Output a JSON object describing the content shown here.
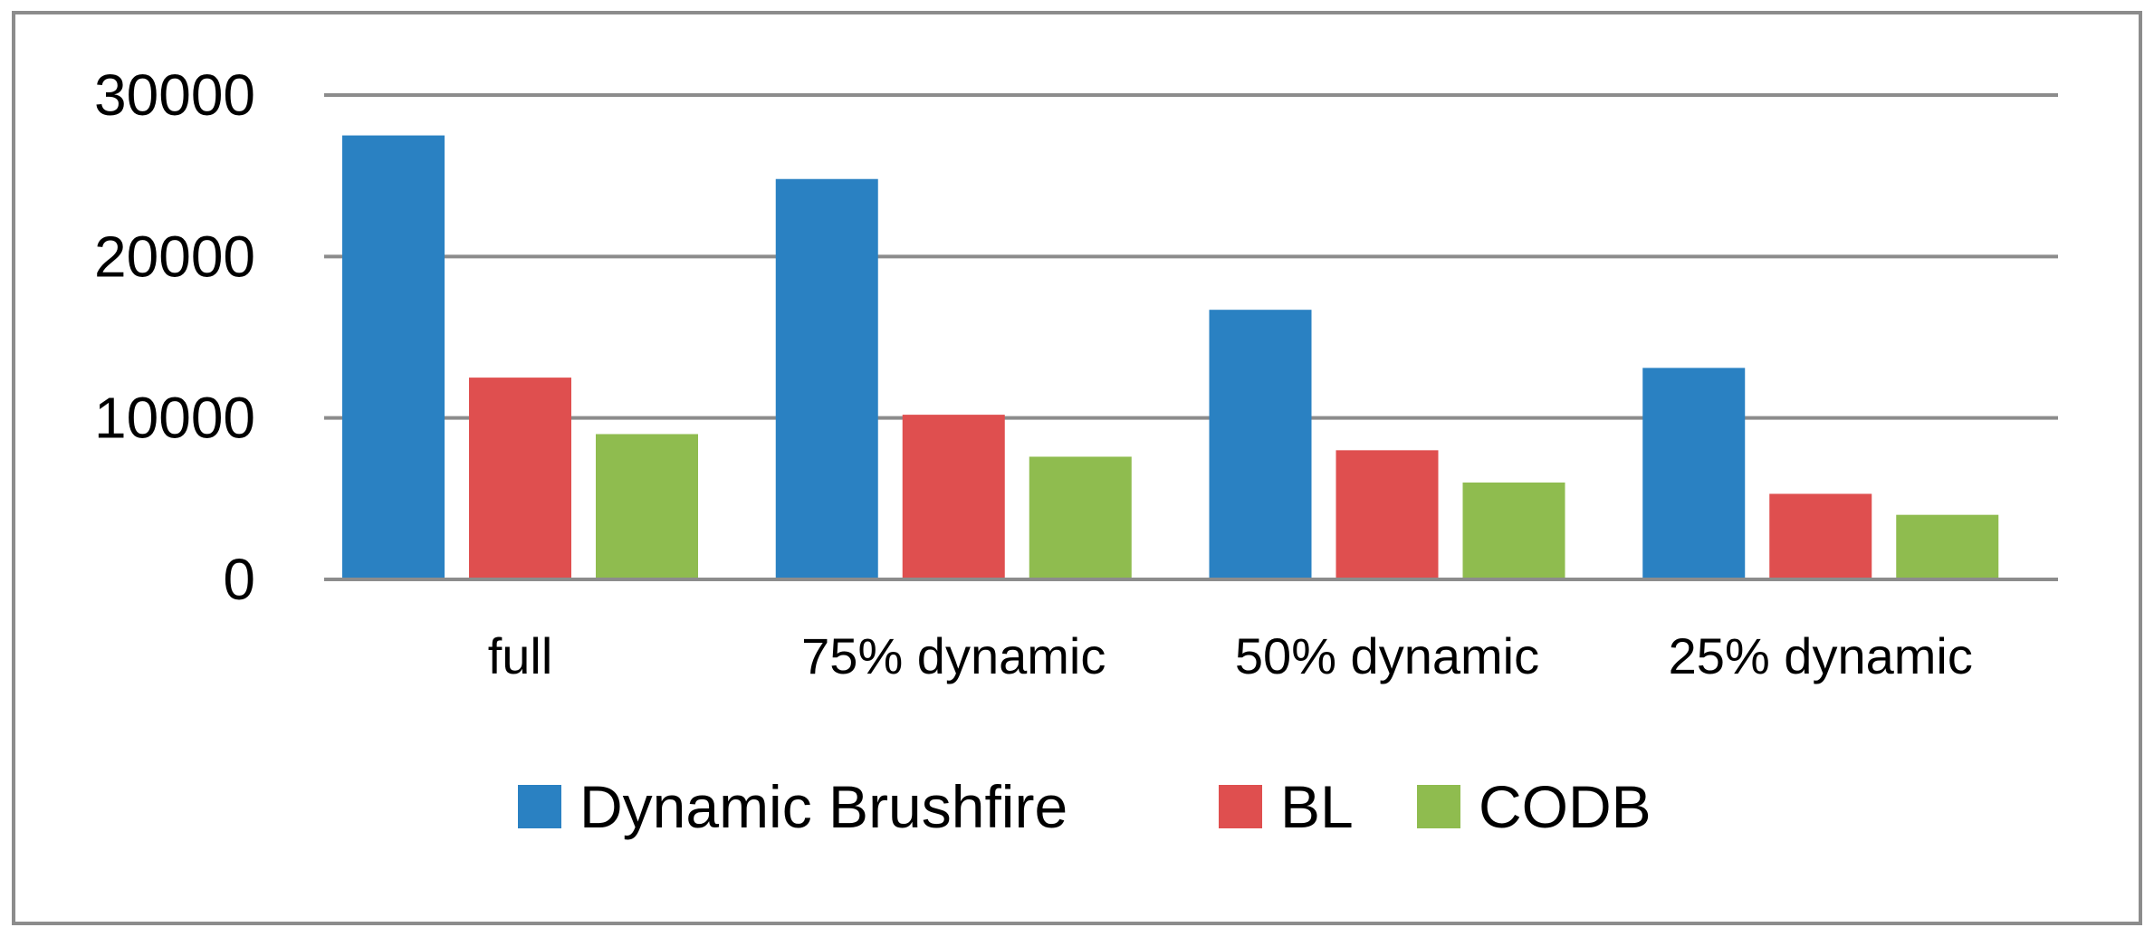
{
  "chart_data": {
    "type": "bar",
    "categories": [
      "full",
      "75% dynamic",
      "50% dynamic",
      "25% dynamic"
    ],
    "series": [
      {
        "name": "Dynamic Brushfire",
        "color": "#2a81c2",
        "values": [
          27500,
          24800,
          16700,
          13100
        ]
      },
      {
        "name": "BL",
        "color": "#df4f4f",
        "values": [
          12500,
          10200,
          8000,
          5300
        ]
      },
      {
        "name": "CODB",
        "color": "#8fbc4f",
        "values": [
          9000,
          7600,
          6000,
          4000
        ]
      }
    ],
    "ylim": [
      0,
      30000
    ],
    "yticks": [
      0,
      10000,
      20000,
      30000
    ],
    "grid": true,
    "legend": "bottom"
  }
}
